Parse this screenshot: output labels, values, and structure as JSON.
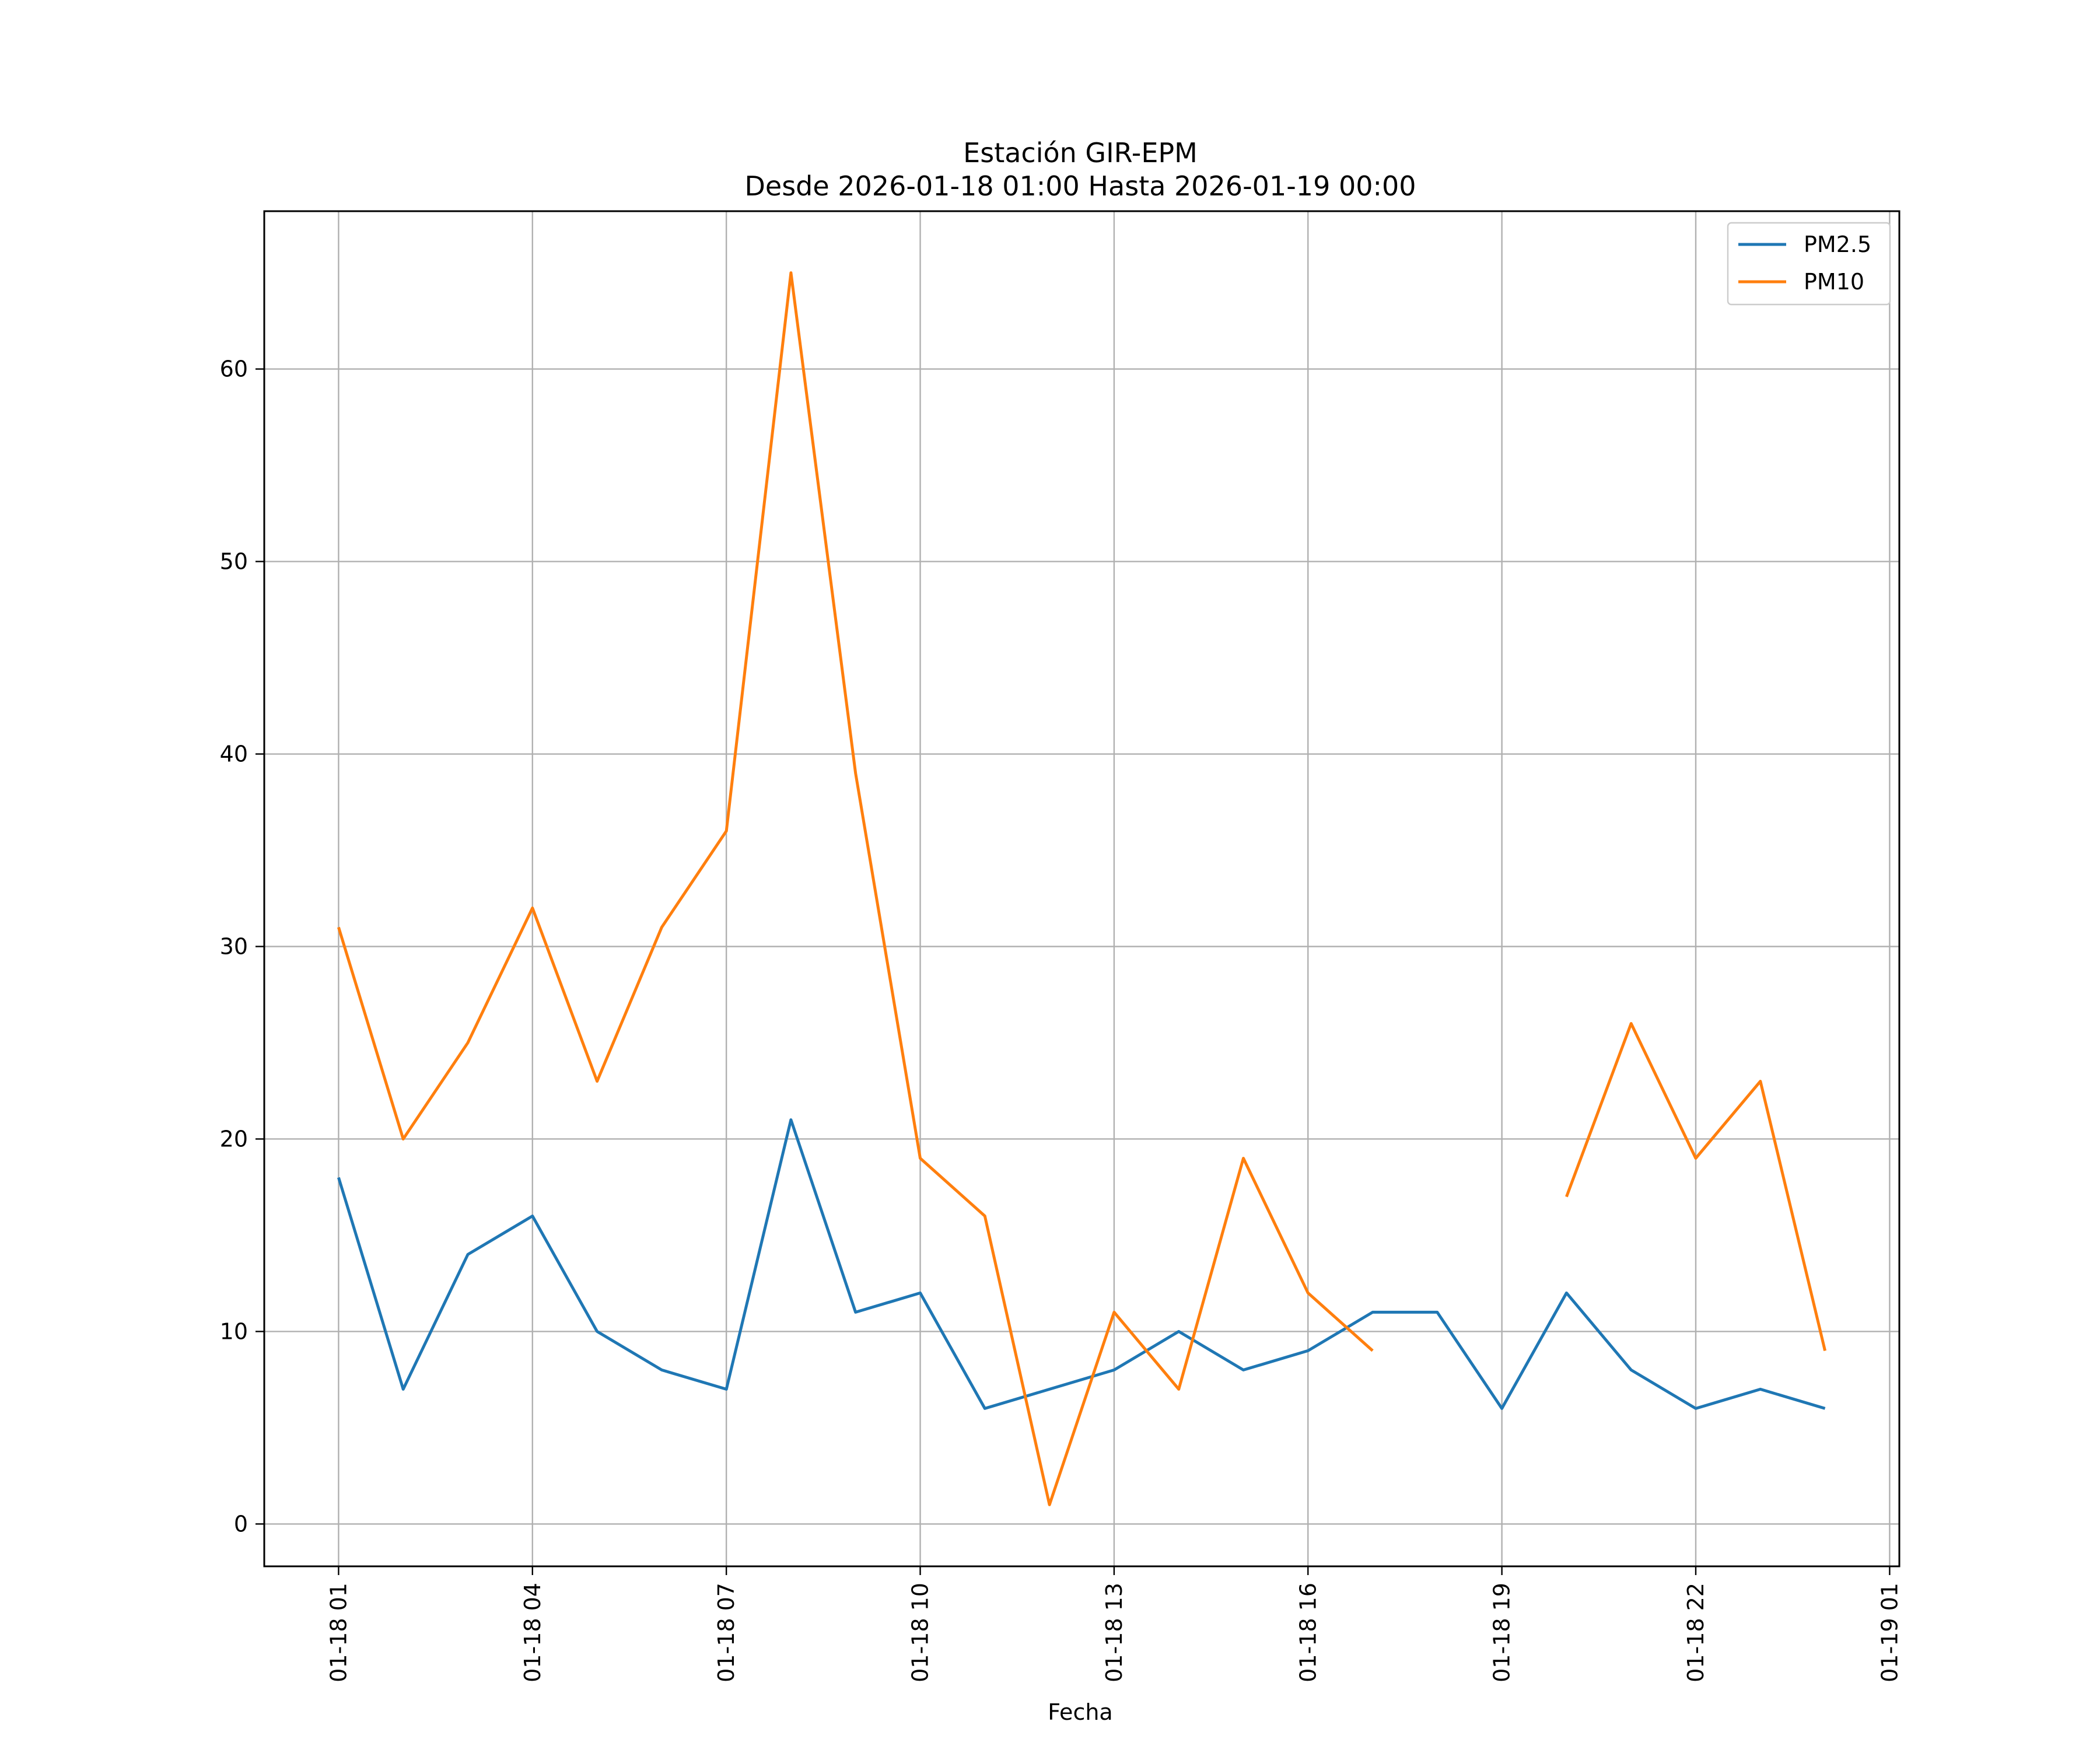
{
  "chart_data": {
    "type": "line",
    "title": "Estación GIR-EPM",
    "subtitle": "Desde 2026-01-18 01:00 Hasta 2026-01-19 00:00",
    "xlabel": "Fecha",
    "ylabel": "",
    "x": [
      1,
      2,
      3,
      4,
      5,
      6,
      7,
      8,
      9,
      10,
      11,
      12,
      13,
      14,
      15,
      16,
      17,
      18,
      19,
      20,
      21,
      22,
      23,
      24
    ],
    "xlim": [
      -0.15,
      25.15
    ],
    "ylim": [
      -2.2,
      68.2
    ],
    "grid": true,
    "legend_position": "top-right",
    "x_ticks": [
      {
        "value": 1,
        "label": "01-18 01"
      },
      {
        "value": 4,
        "label": "01-18 04"
      },
      {
        "value": 7,
        "label": "01-18 07"
      },
      {
        "value": 10,
        "label": "01-18 10"
      },
      {
        "value": 13,
        "label": "01-18 13"
      },
      {
        "value": 16,
        "label": "01-18 16"
      },
      {
        "value": 19,
        "label": "01-18 19"
      },
      {
        "value": 22,
        "label": "01-18 22"
      },
      {
        "value": 25,
        "label": "01-19 01"
      }
    ],
    "y_ticks": [
      {
        "value": 0,
        "label": "0"
      },
      {
        "value": 10,
        "label": "10"
      },
      {
        "value": 20,
        "label": "20"
      },
      {
        "value": 30,
        "label": "30"
      },
      {
        "value": 40,
        "label": "40"
      },
      {
        "value": 50,
        "label": "50"
      },
      {
        "value": 60,
        "label": "60"
      }
    ],
    "series": [
      {
        "name": "PM2.5",
        "color": "#1f77b4",
        "values": [
          18,
          7,
          14,
          16,
          10,
          8,
          7,
          21,
          11,
          12,
          6,
          7,
          8,
          10,
          8,
          9,
          11,
          11,
          6,
          12,
          8,
          6,
          7,
          6
        ]
      },
      {
        "name": "PM10",
        "color": "#ff7f0e",
        "values": [
          31,
          20,
          25,
          32,
          23,
          31,
          36,
          65,
          39,
          19,
          16,
          1,
          11,
          7,
          19,
          12,
          9,
          null,
          null,
          17,
          26,
          19,
          23,
          9
        ]
      }
    ]
  }
}
